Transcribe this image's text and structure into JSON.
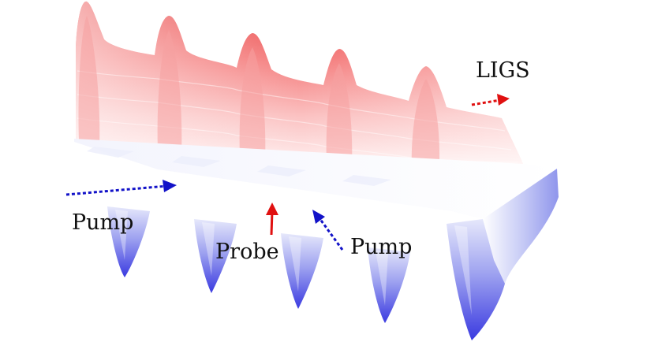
{
  "labels": {
    "ligs": "LIGS",
    "pump_left": "Pump",
    "probe": "Probe",
    "pump_right": "Pump"
  },
  "colors": {
    "red_peak": "#e83a3a",
    "red_light": "#fde3e3",
    "blue_deep": "#3a3ae0",
    "blue_light": "#e6e8fb",
    "arrow_red": "#e01010",
    "arrow_blue": "#1212c8"
  },
  "fringes": {
    "peak_count": 5,
    "trough_count": 5
  }
}
